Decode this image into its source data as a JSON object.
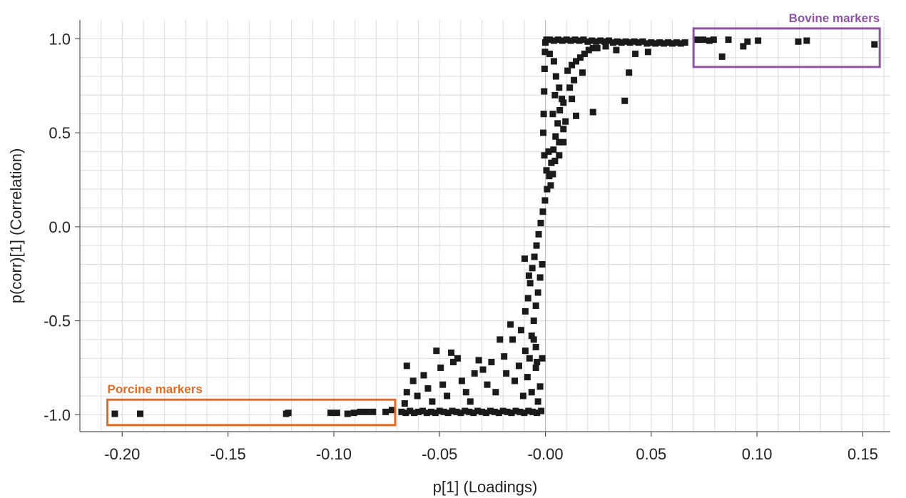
{
  "chart_data": {
    "type": "scatter",
    "title": "",
    "xlabel": "p[1] (Loadings)",
    "ylabel": "p(corr)[1] (Correlation)",
    "xlim": [
      -0.22,
      0.163
    ],
    "ylim": [
      -1.09,
      1.1
    ],
    "grid": true,
    "x_ticks": [
      -0.2,
      -0.15,
      -0.1,
      -0.05,
      0.0,
      0.05,
      0.1,
      0.15
    ],
    "x_tick_labels": [
      "-0.20",
      "-0.15",
      "-0.10",
      "-0.05",
      "-0.00",
      "0.05",
      "0.10",
      "0.15"
    ],
    "y_ticks": [
      1.0,
      0.5,
      0.0,
      -0.5,
      -1.0
    ],
    "y_tick_labels": [
      "1.0",
      "0.5",
      "0.0",
      "-0.5",
      "-1.0"
    ],
    "marker_color": "#1a1a1a",
    "series": [
      {
        "points": [
          [
            -0.2035,
            -0.995
          ],
          [
            -0.1915,
            -0.995
          ],
          [
            -0.1225,
            -0.995
          ],
          [
            -0.1215,
            -0.99
          ],
          [
            -0.1015,
            -0.99
          ],
          [
            -0.0985,
            -0.99
          ],
          [
            -0.0935,
            -0.995
          ],
          [
            -0.0905,
            -0.99
          ],
          [
            -0.0875,
            -0.985
          ],
          [
            -0.0845,
            -0.985
          ],
          [
            -0.0815,
            -0.985
          ],
          [
            -0.0755,
            -0.985
          ],
          [
            -0.0725,
            -0.975
          ],
          [
            -0.068,
            -0.985
          ],
          [
            -0.066,
            -0.99
          ],
          [
            -0.064,
            -0.98
          ],
          [
            -0.062,
            -0.99
          ],
          [
            -0.06,
            -0.985
          ],
          [
            -0.058,
            -0.98
          ],
          [
            -0.056,
            -0.99
          ],
          [
            -0.054,
            -0.985
          ],
          [
            -0.052,
            -0.99
          ],
          [
            -0.05,
            -0.98
          ],
          [
            -0.048,
            -0.985
          ],
          [
            -0.046,
            -0.99
          ],
          [
            -0.044,
            -0.98
          ],
          [
            -0.042,
            -0.985
          ],
          [
            -0.04,
            -0.99
          ],
          [
            -0.038,
            -0.98
          ],
          [
            -0.036,
            -0.985
          ],
          [
            -0.034,
            -0.99
          ],
          [
            -0.032,
            -0.98
          ],
          [
            -0.03,
            -0.985
          ],
          [
            -0.028,
            -0.99
          ],
          [
            -0.026,
            -0.98
          ],
          [
            -0.024,
            -0.985
          ],
          [
            -0.022,
            -0.99
          ],
          [
            -0.02,
            -0.98
          ],
          [
            -0.018,
            -0.985
          ],
          [
            -0.016,
            -0.99
          ],
          [
            -0.014,
            -0.98
          ],
          [
            -0.012,
            -0.985
          ],
          [
            -0.01,
            -0.99
          ],
          [
            -0.008,
            -0.98
          ],
          [
            -0.006,
            -0.985
          ],
          [
            -0.004,
            -0.99
          ],
          [
            -0.002,
            -0.98
          ],
          [
            -0.0655,
            -0.74
          ],
          [
            -0.0625,
            -0.82
          ],
          [
            -0.0655,
            -0.88
          ],
          [
            -0.0665,
            -0.94
          ],
          [
            -0.0605,
            -0.9
          ],
          [
            -0.0575,
            -0.79
          ],
          [
            -0.0555,
            -0.86
          ],
          [
            -0.0535,
            -0.93
          ],
          [
            -0.0515,
            -0.66
          ],
          [
            -0.0495,
            -0.75
          ],
          [
            -0.0485,
            -0.84
          ],
          [
            -0.0465,
            -0.9
          ],
          [
            -0.0445,
            -0.67
          ],
          [
            -0.0435,
            -0.72
          ],
          [
            -0.0415,
            -0.7
          ],
          [
            -0.0395,
            -0.82
          ],
          [
            -0.0375,
            -0.88
          ],
          [
            -0.0355,
            -0.93
          ],
          [
            -0.0335,
            -0.78
          ],
          [
            -0.0315,
            -0.71
          ],
          [
            -0.0295,
            -0.76
          ],
          [
            -0.0275,
            -0.84
          ],
          [
            -0.0255,
            -0.72
          ],
          [
            -0.0235,
            -0.88
          ],
          [
            -0.0215,
            -0.6
          ],
          [
            -0.0195,
            -0.69
          ],
          [
            -0.0185,
            -0.78
          ],
          [
            -0.0165,
            -0.52
          ],
          [
            -0.0155,
            -0.6
          ],
          [
            -0.0145,
            -0.82
          ],
          [
            -0.0125,
            -0.74
          ],
          [
            -0.0115,
            -0.55
          ],
          [
            -0.0105,
            -0.9
          ],
          [
            -0.0095,
            -0.66
          ],
          [
            -0.0085,
            -0.8
          ],
          [
            -0.0075,
            -0.7
          ],
          [
            -0.0065,
            -0.88
          ],
          [
            -0.0055,
            -0.6
          ],
          [
            -0.0045,
            -0.75
          ],
          [
            -0.0035,
            -0.93
          ],
          [
            -0.0025,
            -0.85
          ],
          [
            -0.0015,
            -0.7
          ],
          [
            -0.0095,
            -0.45
          ],
          [
            -0.0082,
            -0.38
          ],
          [
            -0.0072,
            -0.3
          ],
          [
            -0.0062,
            -0.22
          ],
          [
            -0.0052,
            -0.16
          ],
          [
            -0.0042,
            -0.1
          ],
          [
            -0.0032,
            -0.04
          ],
          [
            -0.0022,
            0.02
          ],
          [
            -0.0012,
            0.08
          ],
          [
            -0.0002,
            0.14
          ],
          [
            0.0008,
            0.2
          ],
          [
            0.0018,
            0.27
          ],
          [
            0.0028,
            0.34
          ],
          [
            0.0038,
            0.41
          ],
          [
            0.0048,
            0.48
          ],
          [
            0.0058,
            0.55
          ],
          [
            0.0068,
            0.62
          ],
          [
            0.0078,
            0.68
          ],
          [
            -0.0065,
            -0.58
          ],
          [
            -0.0055,
            -0.5
          ],
          [
            -0.0045,
            -0.42
          ],
          [
            -0.0035,
            -0.35
          ],
          [
            -0.0025,
            -0.27
          ],
          [
            -0.0015,
            -0.2
          ],
          [
            -0.0078,
            -0.26
          ],
          [
            -0.0098,
            -0.17
          ],
          [
            -0.0045,
            -0.64
          ],
          [
            -0.004,
            -0.72
          ],
          [
            0.0005,
            0.3
          ],
          [
            0.0025,
            0.22
          ],
          [
            0.0045,
            0.35
          ],
          [
            0.0065,
            0.45
          ],
          [
            0.0085,
            0.52
          ],
          [
            0.0015,
            0.4
          ],
          [
            -0.0005,
            0.38
          ],
          [
            0.0035,
            0.28
          ],
          [
            -0.001,
            0.5
          ],
          [
            -0.0008,
            0.6
          ],
          [
            -0.0006,
            0.72
          ],
          [
            -0.0004,
            0.84
          ],
          [
            -0.0002,
            0.93
          ],
          [
            0.0,
            0.98
          ],
          [
            0.0005,
            0.995
          ],
          [
            0.002,
            0.995
          ],
          [
            0.004,
            0.99
          ],
          [
            0.006,
            0.995
          ],
          [
            0.008,
            0.99
          ],
          [
            0.01,
            0.995
          ],
          [
            0.012,
            0.99
          ],
          [
            0.014,
            0.995
          ],
          [
            0.016,
            0.99
          ],
          [
            0.018,
            0.995
          ],
          [
            0.02,
            0.985
          ],
          [
            0.022,
            0.99
          ],
          [
            0.024,
            0.985
          ],
          [
            0.026,
            0.99
          ],
          [
            0.028,
            0.985
          ],
          [
            0.03,
            0.99
          ],
          [
            0.032,
            0.98
          ],
          [
            0.034,
            0.985
          ],
          [
            0.036,
            0.98
          ],
          [
            0.038,
            0.985
          ],
          [
            0.04,
            0.98
          ],
          [
            0.042,
            0.985
          ],
          [
            0.044,
            0.98
          ],
          [
            0.046,
            0.985
          ],
          [
            0.048,
            0.975
          ],
          [
            0.05,
            0.98
          ],
          [
            0.052,
            0.975
          ],
          [
            0.054,
            0.98
          ],
          [
            0.056,
            0.975
          ],
          [
            0.058,
            0.98
          ],
          [
            0.06,
            0.975
          ],
          [
            0.062,
            0.98
          ],
          [
            0.064,
            0.975
          ],
          [
            0.066,
            0.98
          ],
          [
            0.002,
            0.92
          ],
          [
            0.004,
            0.88
          ],
          [
            0.005,
            0.8
          ],
          [
            0.0065,
            0.74
          ],
          [
            0.0085,
            0.66
          ],
          [
            0.0045,
            0.7
          ],
          [
            0.0035,
            0.6
          ],
          [
            0.0105,
            0.83
          ],
          [
            0.0125,
            0.86
          ],
          [
            0.0145,
            0.88
          ],
          [
            0.0165,
            0.9
          ],
          [
            0.0185,
            0.92
          ],
          [
            0.0205,
            0.94
          ],
          [
            0.0225,
            0.95
          ],
          [
            0.0245,
            0.95
          ],
          [
            0.0115,
            0.74
          ],
          [
            0.0135,
            0.78
          ],
          [
            0.0095,
            0.56
          ],
          [
            0.0125,
            0.68
          ],
          [
            0.0175,
            0.82
          ],
          [
            0.0145,
            0.59
          ],
          [
            0.0225,
            0.61
          ],
          [
            0.0285,
            0.96
          ],
          [
            0.0335,
            0.94
          ],
          [
            0.0375,
            0.67
          ],
          [
            0.0395,
            0.82
          ],
          [
            0.0425,
            0.92
          ],
          [
            0.0485,
            0.93
          ],
          [
            0.0085,
            0.45
          ],
          [
            0.0065,
            0.38
          ],
          [
            0.0715,
            0.995
          ],
          [
            0.0745,
            0.995
          ],
          [
            0.0775,
            0.99
          ],
          [
            0.0795,
            0.995
          ],
          [
            0.0835,
            0.905
          ],
          [
            0.0865,
            0.995
          ],
          [
            0.0935,
            0.96
          ],
          [
            0.0955,
            0.985
          ],
          [
            0.1005,
            0.99
          ],
          [
            0.1195,
            0.985
          ],
          [
            0.1235,
            0.99
          ],
          [
            0.1555,
            0.97
          ]
        ]
      }
    ],
    "annotations": [
      {
        "text": "Bovine markers",
        "color": "#8b55a3",
        "x_range": [
          0.07,
          0.158
        ],
        "y_range": [
          0.85,
          1.055
        ]
      },
      {
        "text": "Porcine markers",
        "color": "#e66a22",
        "x_range": [
          -0.207,
          -0.071
        ],
        "y_range": [
          -1.055,
          -0.92
        ]
      }
    ]
  }
}
